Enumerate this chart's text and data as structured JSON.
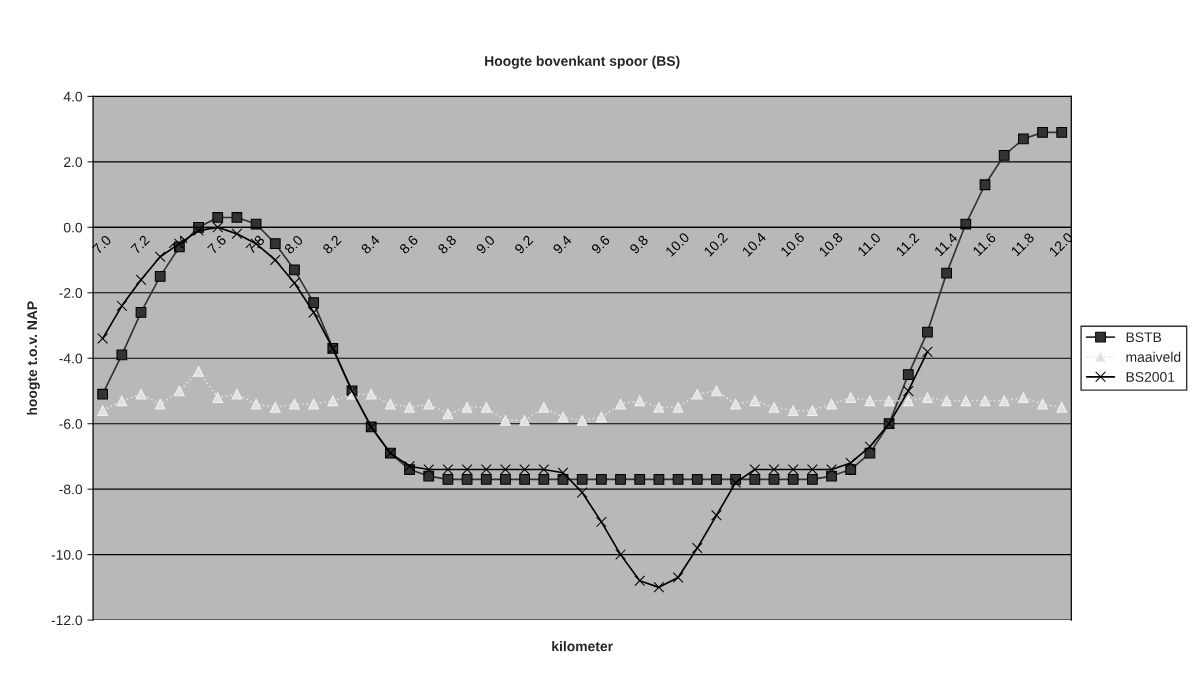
{
  "chart_data": {
    "type": "line",
    "title": "Hoogte bovenkant spoor (BS)",
    "xlabel": "kilometer",
    "ylabel": "hoogte t.o.v. NAP",
    "categories": [
      "7.0",
      null,
      "7.2",
      null,
      "7.4",
      null,
      "7.6",
      null,
      "7.8",
      null,
      "8.0",
      null,
      "8.2",
      null,
      "8.4",
      null,
      "8.6",
      null,
      "8.8",
      null,
      "9.0",
      null,
      "9.2",
      null,
      "9.4",
      null,
      "9.6",
      null,
      "9.8",
      null,
      "10.0",
      null,
      "10.2",
      null,
      "10.4",
      null,
      "10.6",
      null,
      "10.8",
      null,
      "11.0",
      null,
      "11.2",
      null,
      "11.4",
      null,
      "11.6",
      null,
      "11.8",
      null,
      "12.0"
    ],
    "series": [
      {
        "name": "BSTB",
        "color": "#333333",
        "marker": "square",
        "line_style": "solid",
        "values": [
          -5.1,
          -3.9,
          -2.6,
          -1.5,
          -0.6,
          0.0,
          0.3,
          0.3,
          0.1,
          -0.5,
          -1.3,
          -2.3,
          -3.7,
          -5.0,
          -6.1,
          -6.9,
          -7.4,
          -7.6,
          -7.7,
          -7.7,
          -7.7,
          -7.7,
          -7.7,
          -7.7,
          -7.7,
          -7.7,
          -7.7,
          -7.7,
          -7.7,
          -7.7,
          -7.7,
          -7.7,
          -7.7,
          -7.7,
          -7.7,
          -7.7,
          -7.7,
          -7.7,
          -7.6,
          -7.4,
          -6.9,
          -6.0,
          -4.5,
          -3.2,
          -1.4,
          0.1,
          1.3,
          2.2,
          2.7,
          2.9,
          2.9
        ]
      },
      {
        "name": "maaiveld",
        "color": "#e0e0e0",
        "marker": "triangle",
        "line_style": "dotted",
        "values": [
          -5.6,
          -5.3,
          -5.1,
          -5.4,
          -5.0,
          -4.4,
          -5.2,
          -5.1,
          -5.4,
          -5.5,
          -5.4,
          -5.4,
          -5.3,
          -5.1,
          -5.1,
          -5.4,
          -5.5,
          -5.4,
          -5.7,
          -5.5,
          -5.5,
          -5.9,
          -5.9,
          -5.5,
          -5.8,
          -5.9,
          -5.8,
          -5.4,
          -5.3,
          -5.5,
          -5.5,
          -5.1,
          -5.0,
          -5.4,
          -5.3,
          -5.5,
          -5.6,
          -5.6,
          -5.4,
          -5.2,
          -5.3,
          -5.3,
          -5.3,
          -5.2,
          -5.3,
          -5.3,
          -5.3,
          -5.3,
          -5.2,
          -5.4,
          -5.5
        ]
      },
      {
        "name": "BS2001",
        "color": "#000000",
        "marker": "cross",
        "line_style": "solid",
        "values": [
          -3.4,
          -2.4,
          -1.6,
          -0.9,
          -0.5,
          -0.1,
          0.0,
          -0.2,
          -0.5,
          -1.0,
          -1.7,
          -2.6,
          -3.7,
          -5.0,
          -6.1,
          -6.9,
          -7.3,
          -7.4,
          -7.4,
          -7.4,
          -7.4,
          -7.4,
          -7.4,
          -7.4,
          -7.5,
          -8.1,
          -9.0,
          -10.0,
          -10.8,
          -11.0,
          -10.7,
          -9.8,
          -8.8,
          -7.8,
          -7.4,
          -7.4,
          -7.4,
          -7.4,
          -7.4,
          -7.2,
          -6.7,
          -6.0,
          -5.0,
          -3.8,
          null,
          null,
          null,
          null,
          null,
          null,
          null
        ]
      }
    ],
    "ylim": [
      -12,
      4
    ],
    "yticks": [
      {
        "value": -12,
        "label": "-12.0"
      },
      {
        "value": -10,
        "label": "-10.0"
      },
      {
        "value": -8,
        "label": "-8.0"
      },
      {
        "value": -6,
        "label": "-6.0"
      },
      {
        "value": -4,
        "label": "-4.0"
      },
      {
        "value": -2,
        "label": "-2.0"
      },
      {
        "value": 0,
        "label": "0.0"
      },
      {
        "value": 2,
        "label": "2.0"
      },
      {
        "value": 4,
        "label": "4.0"
      }
    ],
    "grid": "y",
    "legend": "right"
  }
}
